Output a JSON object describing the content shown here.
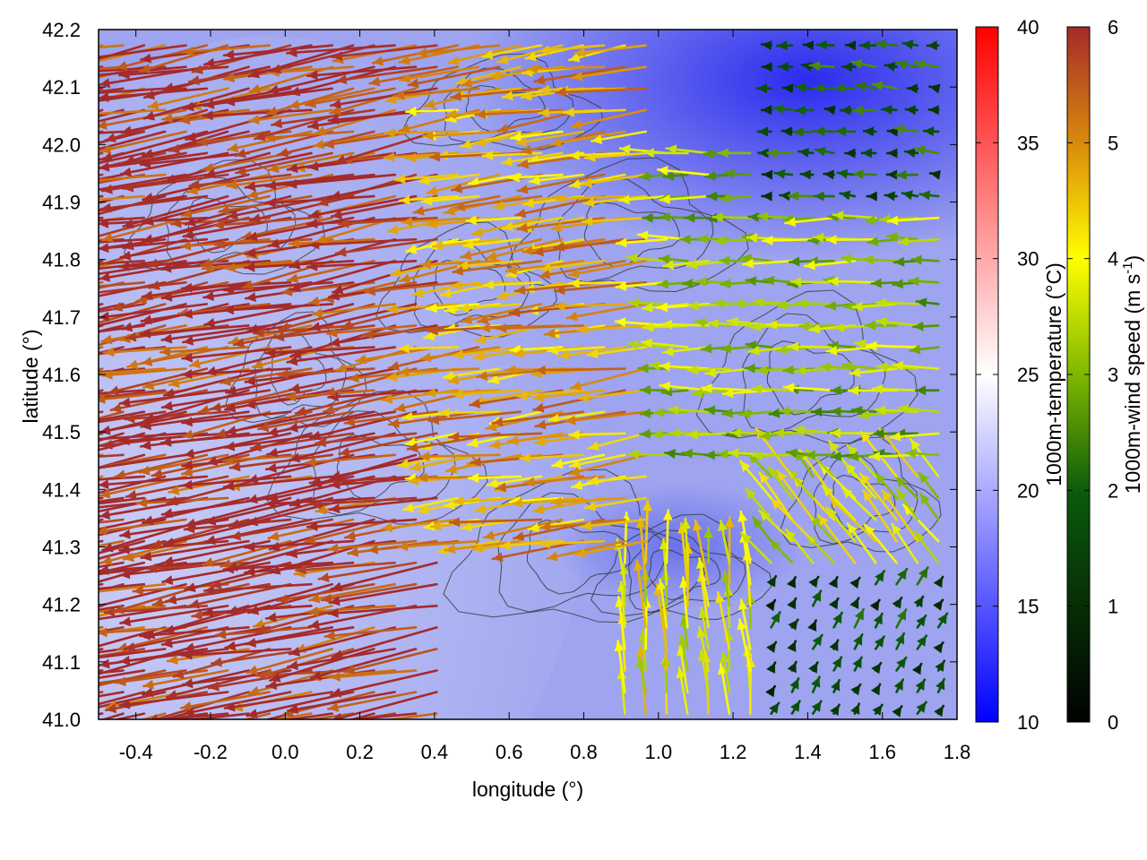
{
  "chart_data": {
    "type": "quiver",
    "xlabel": "longitude (°)",
    "ylabel": "latitude (°)",
    "xlim": [
      -0.5,
      1.8
    ],
    "ylim": [
      41.0,
      42.2
    ],
    "x_ticks": [
      "-0.4",
      "-0.2",
      "0.0",
      "0.2",
      "0.4",
      "0.6",
      "0.8",
      "1.0",
      "1.2",
      "1.4",
      "1.6",
      "1.8"
    ],
    "y_ticks": [
      "41.0",
      "41.1",
      "41.2",
      "41.3",
      "41.4",
      "41.5",
      "41.6",
      "41.7",
      "41.8",
      "41.9",
      "42.0",
      "42.1",
      "42.2"
    ],
    "temperature_colorbar": {
      "label": "1000m-temperature (°C)",
      "range": [
        10,
        40
      ],
      "ticks": [
        "10",
        "15",
        "20",
        "25",
        "30",
        "35",
        "40"
      ],
      "colors": [
        "#0000ff",
        "#ffffff",
        "#ff0000"
      ]
    },
    "wind_speed_colorbar": {
      "label_main": "1000m-wind speed (m s",
      "label_sup": "-1",
      "label_end": ")",
      "range": [
        0,
        6
      ],
      "ticks": [
        "0",
        "1",
        "2",
        "3",
        "4",
        "5",
        "6"
      ],
      "colors": [
        "#000000",
        "#0b5a0b",
        "#7fb800",
        "#ffff00",
        "#d98a0c",
        "#a52a2a"
      ]
    },
    "wind_regions": [
      {
        "lon": [
          -0.5,
          0.45
        ],
        "lat": [
          41.0,
          42.2
        ],
        "speed": 5.9,
        "direction_deg": 190
      },
      {
        "lon": [
          0.45,
          1.0
        ],
        "lat": [
          41.3,
          42.2
        ],
        "speed": 4.8,
        "direction_deg": 188
      },
      {
        "lon": [
          1.0,
          1.8
        ],
        "lat": [
          41.45,
          42.0
        ],
        "speed": 3.2,
        "direction_deg": 180
      },
      {
        "lon": [
          1.3,
          1.8
        ],
        "lat": [
          41.9,
          42.2
        ],
        "speed": 1.8,
        "direction_deg": 175
      },
      {
        "lon": [
          1.2,
          1.8
        ],
        "lat": [
          41.0,
          41.25
        ],
        "speed": 1.5,
        "direction_deg": 60
      },
      {
        "lon": [
          0.9,
          1.3
        ],
        "lat": [
          41.0,
          41.3
        ],
        "speed": 3.9,
        "direction_deg": 95
      },
      {
        "lon": [
          1.3,
          1.8
        ],
        "lat": [
          41.25,
          41.45
        ],
        "speed": 3.7,
        "direction_deg": 130
      }
    ],
    "temperature_field": {
      "west": 20,
      "center": 18,
      "northeast": 11,
      "southeast": 17
    },
    "contours": "terrain isolines (dark grey)"
  }
}
